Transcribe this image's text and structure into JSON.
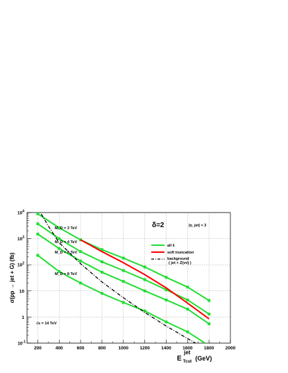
{
  "chart_data": {
    "type": "line",
    "title": "",
    "xlabel": "E_Tcut^jet (GeV)",
    "xlabel_main": "E",
    "xlabel_sup": "jet",
    "xlabel_sub": "Tcut",
    "xlabel_unit": "(GeV)",
    "ylabel": "σ(pp → jet + G)  (fb)",
    "xlim": [
      100,
      2000
    ],
    "ylim_log10": [
      -1,
      4
    ],
    "yscale": "log",
    "grid": true,
    "x_ticks": [
      200,
      400,
      600,
      800,
      1000,
      1200,
      1400,
      1600,
      1800,
      2000
    ],
    "y_ticks": [
      {
        "base": "10",
        "exp": "-1",
        "value": 0.1
      },
      {
        "base": "1",
        "exp": "",
        "value": 1
      },
      {
        "base": "10",
        "exp": "",
        "value": 10
      },
      {
        "base": "10",
        "exp": "2",
        "value": 100
      },
      {
        "base": "10",
        "exp": "3",
        "value": 1000
      },
      {
        "base": "10",
        "exp": "4",
        "value": 10000
      }
    ],
    "series": [
      {
        "name": "all ŝ",
        "color": "#22dd33",
        "style": "solid",
        "markers": true,
        "curves": [
          {
            "x": [
              200,
              400,
              600,
              800,
              1000,
              1200,
              1400,
              1600,
              1800
            ],
            "y": [
              9000,
              2600,
              900,
              380,
              180,
              82,
              33,
              14,
              4.3
            ]
          },
          {
            "x": [
              200,
              400,
              600,
              800,
              1000,
              1200,
              1400,
              1600,
              1800
            ],
            "y": [
              3700,
              1000,
              320,
              130,
              60,
              27,
              11,
              4.5,
              1.3
            ]
          },
          {
            "x": [
              200,
              400,
              600,
              800,
              1000,
              1200,
              1400,
              1600,
              1800
            ],
            "y": [
              1500,
              420,
              140,
              52,
              23,
              10,
              4.5,
              2.0,
              0.55
            ]
          },
          {
            "x": [
              200,
              400,
              600,
              800,
              1000,
              1200,
              1400,
              1600,
              1800
            ],
            "y": [
              230,
              55,
              20,
              8,
              3.6,
              1.7,
              0.65,
              0.27,
              0.08
            ]
          }
        ]
      },
      {
        "name": "soft truncation",
        "color": "#ff0000",
        "style": "solid",
        "markers": false,
        "curves": [
          {
            "x": [
              600,
              800,
              1000,
              1200,
              1400,
              1600,
              1800
            ],
            "y": [
              900,
              320,
              120,
              42,
              13,
              3.4,
              0.85
            ]
          }
        ]
      },
      {
        "name": "background",
        "name2": "( jet + Z(νν̄) )",
        "color": "#000000",
        "style": "dashdot",
        "markers": false,
        "curves": [
          {
            "x": [
              200,
              300,
              400,
              600,
              800,
              1000,
              1200,
              1400,
              1600,
              1800,
              1900
            ],
            "y": [
              15000,
              3000,
              700,
              110,
              22,
              5.5,
              1.5,
              0.45,
              0.15,
              0.05,
              0.03
            ]
          }
        ]
      }
    ],
    "annotations": {
      "delta": "δ=2",
      "eta_cut": "|η_jet| < 3",
      "sqrt_s": "√s = 14 TeV",
      "mass_labels": [
        "M_D = 3 TeV",
        "M_D = 4 TeV",
        "M_D = 5 TeV",
        "M_D = 8 TeV"
      ]
    }
  }
}
